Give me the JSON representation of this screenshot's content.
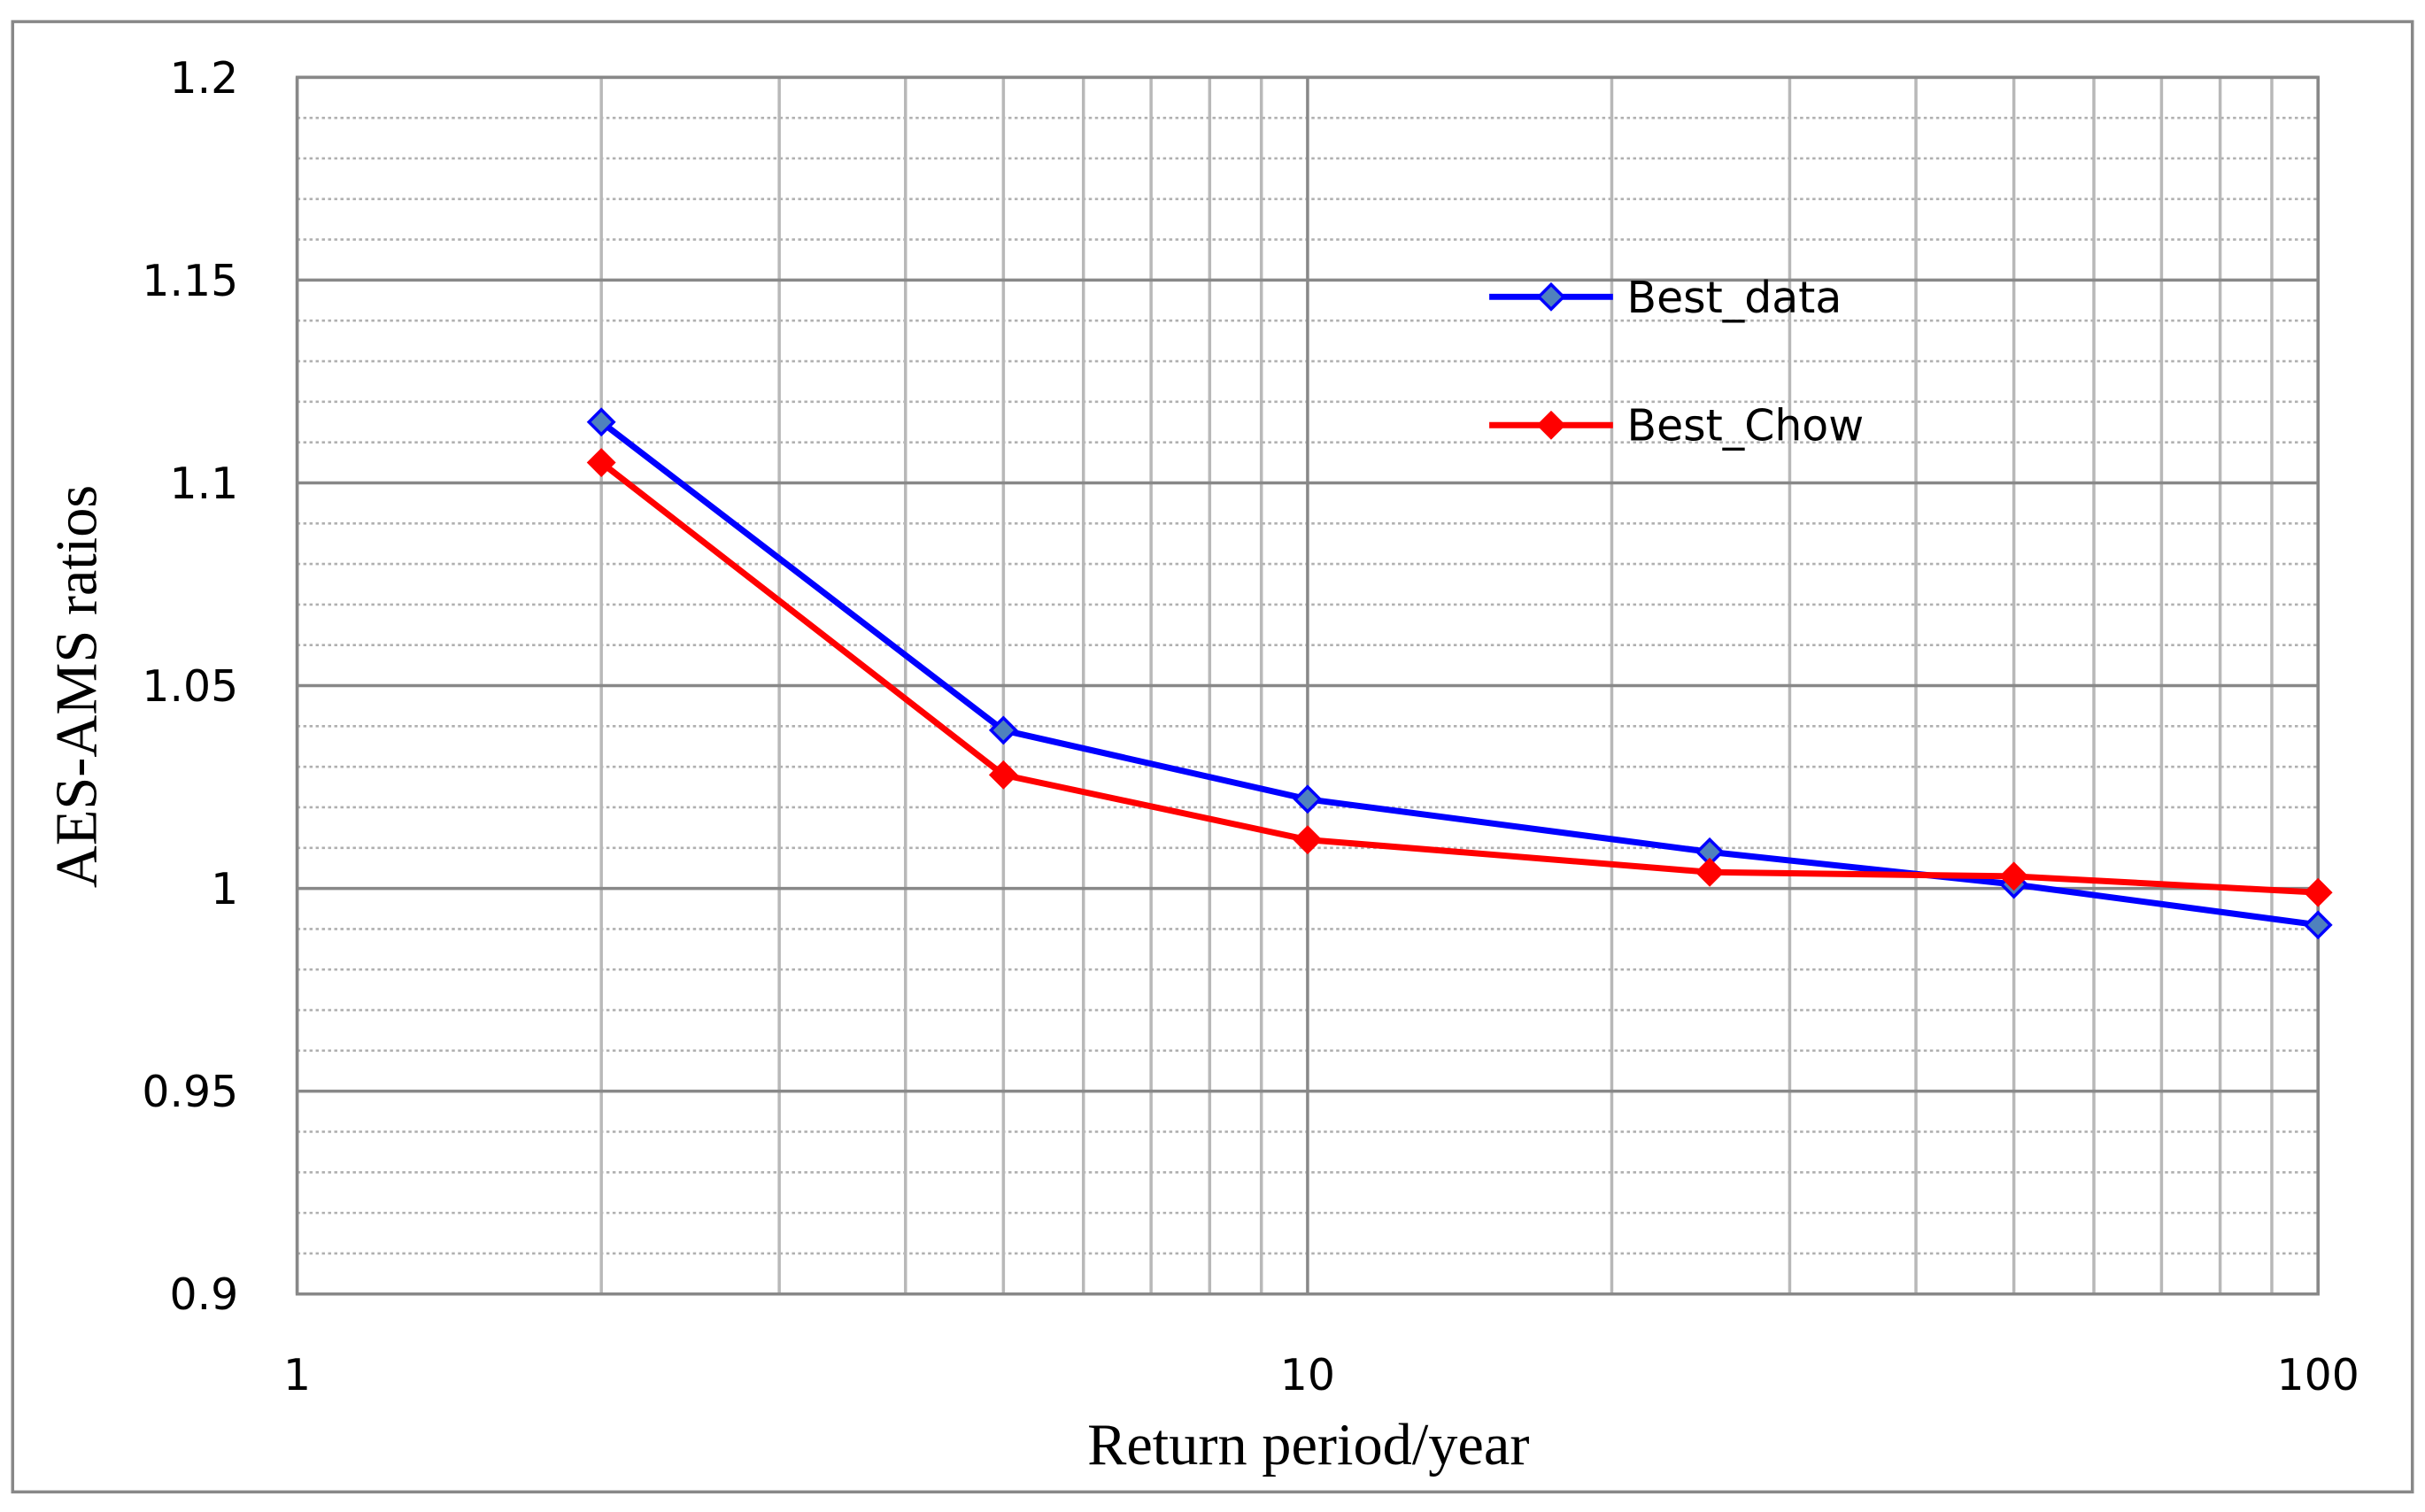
{
  "chart_data": {
    "type": "line",
    "x_label": "Return period/year",
    "y_label": "AES-AMS ratios",
    "x": [
      2,
      5,
      10,
      25,
      50,
      100
    ],
    "series": [
      {
        "name": "Best_data",
        "color": "#0000ff",
        "marker_color": "#4f81bd",
        "values": [
          1.115,
          1.039,
          1.022,
          1.009,
          1.001,
          0.991
        ]
      },
      {
        "name": "Best_Chow",
        "color": "#ff0000",
        "marker_color": "#ff0000",
        "values": [
          1.105,
          1.028,
          1.012,
          1.004,
          1.003,
          0.999
        ]
      }
    ],
    "xlim": [
      1,
      100
    ],
    "xticks": [
      1,
      10,
      100
    ],
    "x_log_scale": true,
    "ylim": [
      0.9,
      1.2
    ],
    "yticks": [
      0.9,
      0.95,
      1,
      1.05,
      1.1,
      1.15,
      1.2
    ],
    "grid": true,
    "minor_grid": true,
    "legend": "upper right"
  }
}
